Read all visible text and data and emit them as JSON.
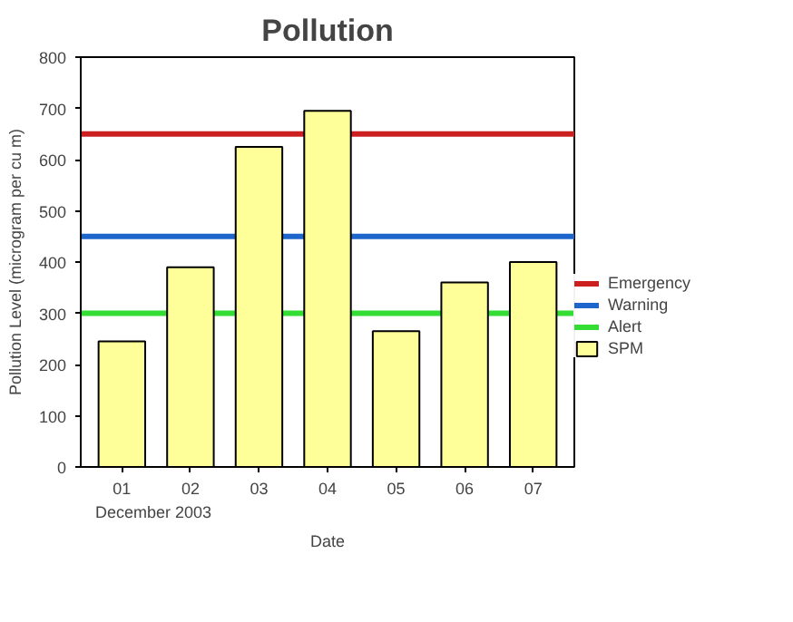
{
  "chart_data": {
    "type": "bar",
    "title": "Pollution",
    "xlabel": "Date",
    "ylabel": "Pollution Level (microgram per cu m)",
    "categories": [
      "01",
      "02",
      "03",
      "04",
      "05",
      "06",
      "07"
    ],
    "series": [
      {
        "name": "SPM",
        "color": "#ffff99",
        "values": [
          245,
          390,
          625,
          695,
          265,
          360,
          400
        ]
      }
    ],
    "ylim": [
      0,
      800
    ],
    "yticks": [
      0,
      100,
      200,
      300,
      400,
      500,
      600,
      700,
      800
    ],
    "ref_lines": [
      {
        "axis": "y",
        "value": 650,
        "label": "Emergency",
        "color": "#cc1f1f"
      },
      {
        "axis": "y",
        "value": 450,
        "label": "Warning",
        "color": "#1f66cc"
      },
      {
        "axis": "y",
        "value": 300,
        "label": "Alert",
        "color": "#33dd33"
      }
    ],
    "annotations": [
      "December 2003"
    ],
    "grid": false,
    "legend": "right"
  }
}
